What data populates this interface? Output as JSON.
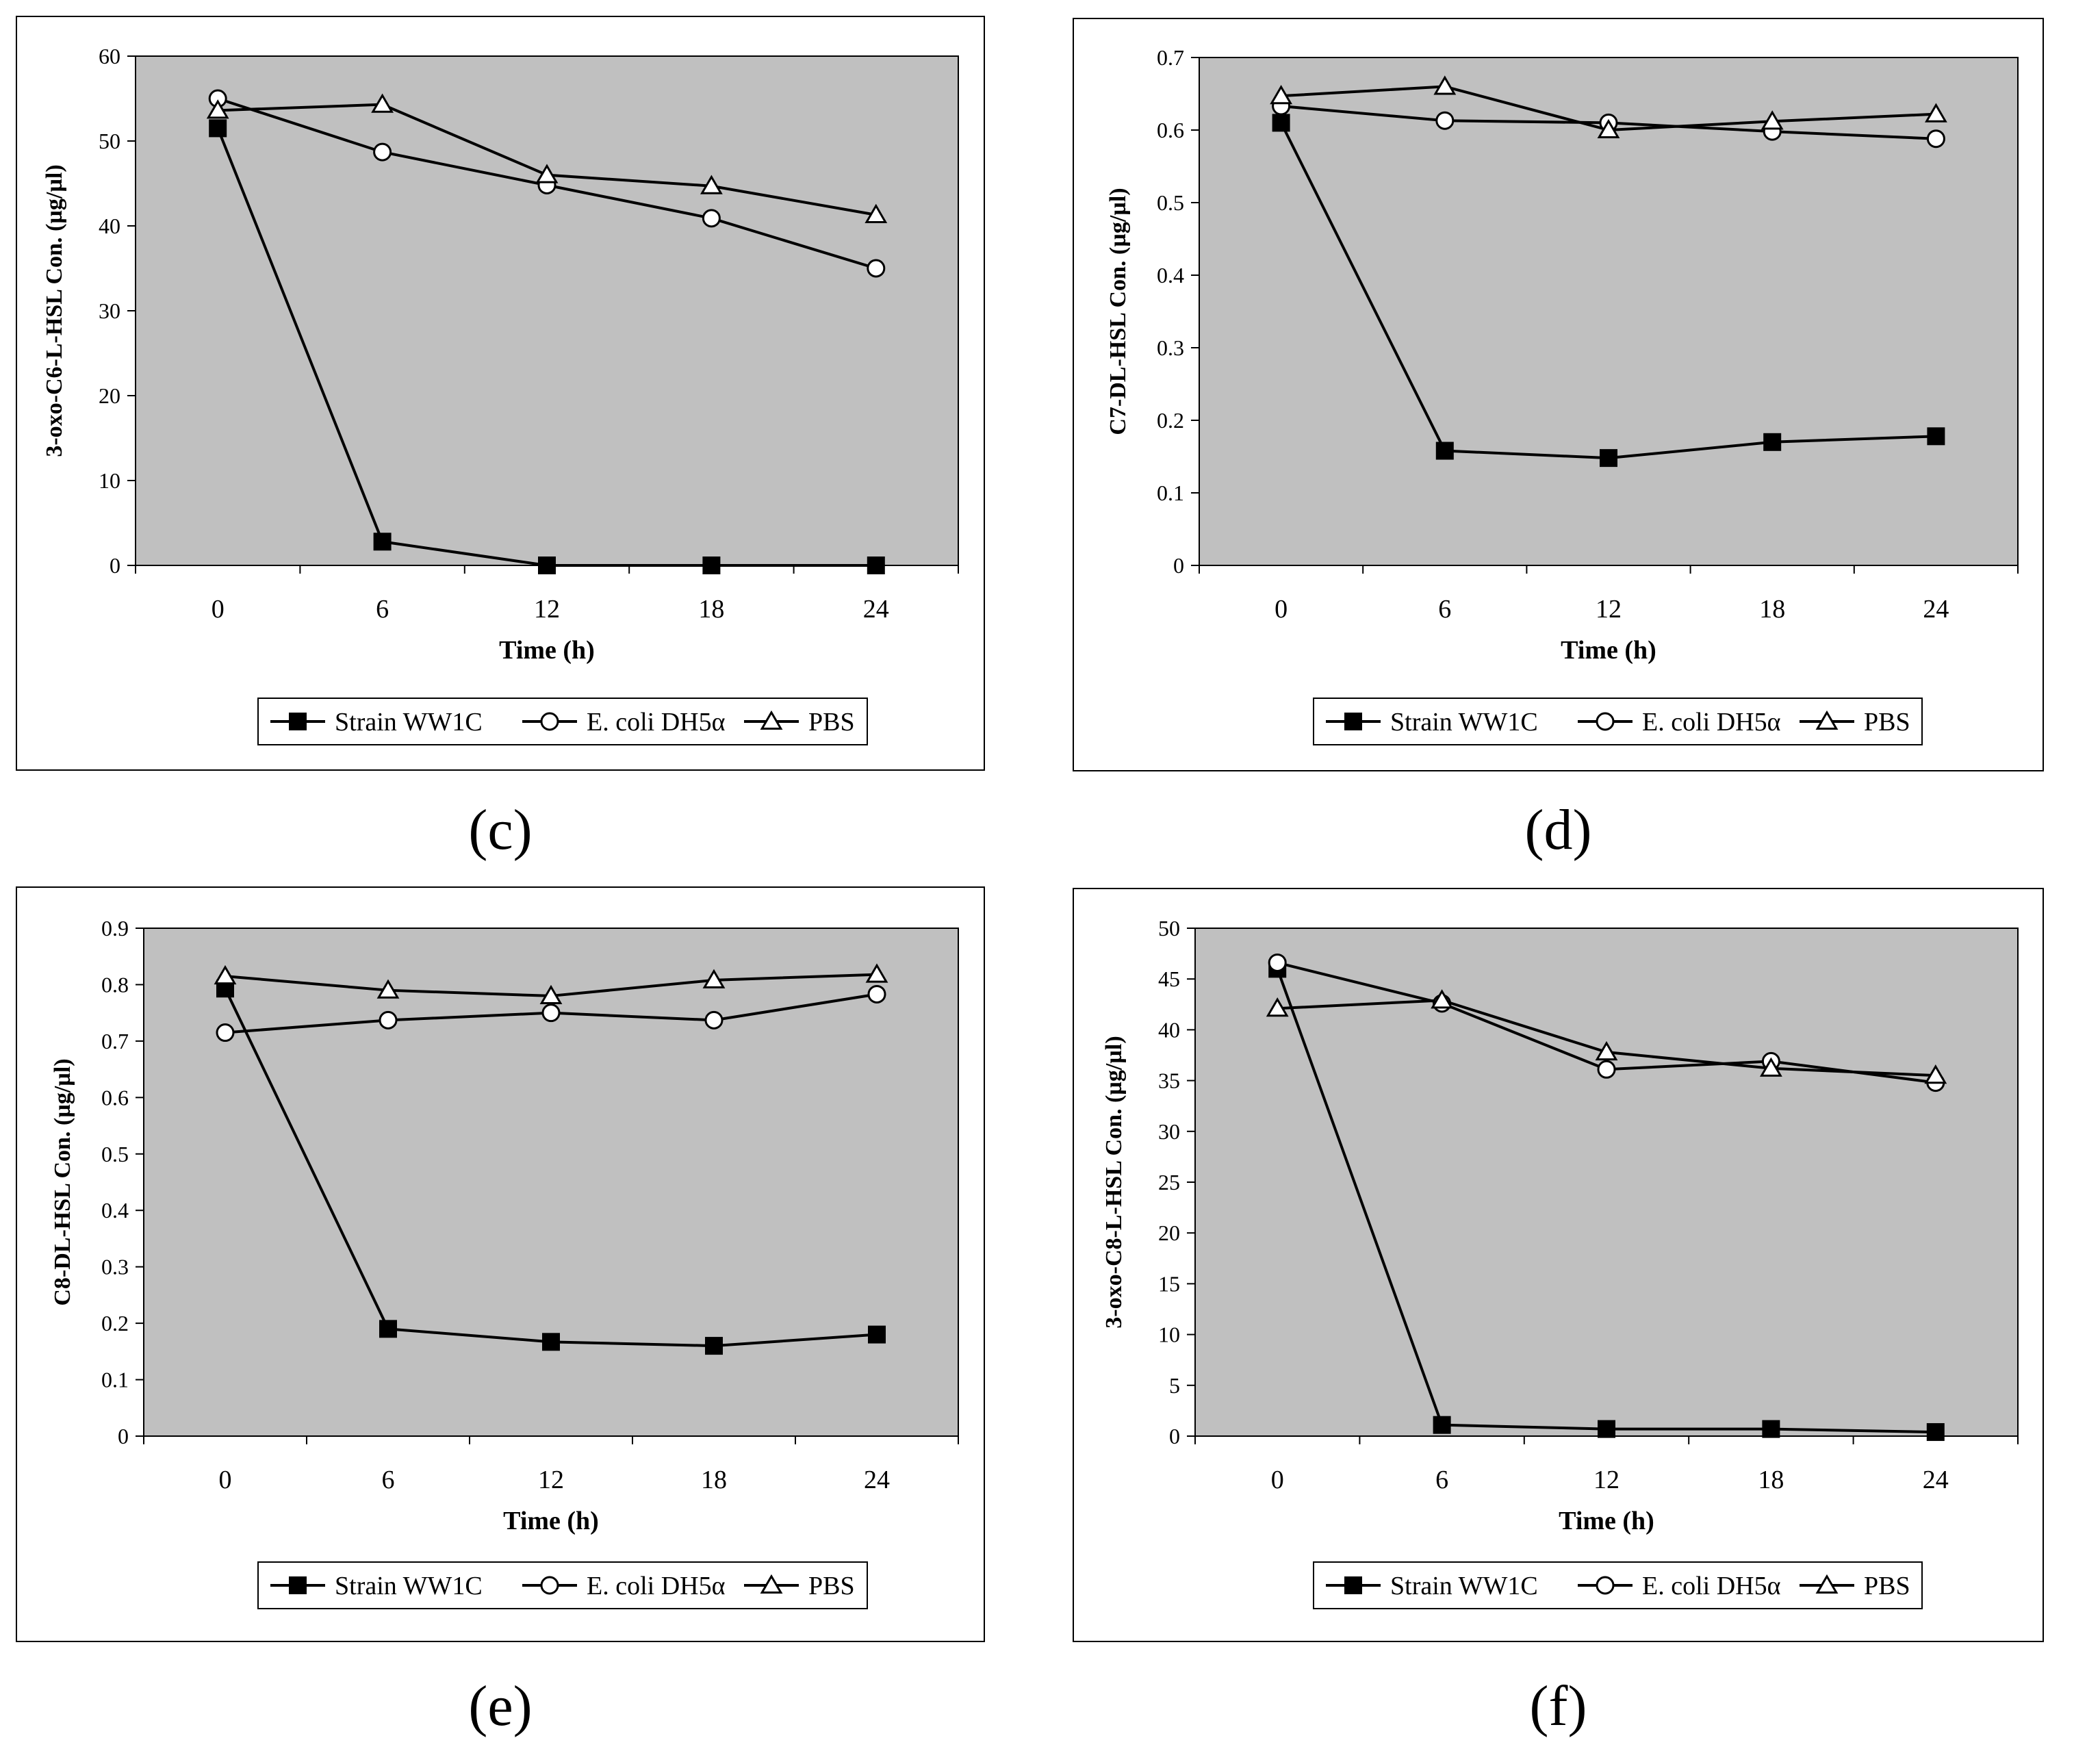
{
  "legend": [
    "Strain WW1C",
    "E. coli DH5α",
    "PBS"
  ],
  "panel_labels": [
    "(c)",
    "(d)",
    "(e)",
    "(f)"
  ],
  "chart_data": [
    {
      "type": "line",
      "panel": "(c)",
      "xlabel": "Time (h)",
      "ylabel": "3-oxo-C6-L-HSL Con. (µg/µl)",
      "categories": [
        "0",
        "6",
        "12",
        "18",
        "24"
      ],
      "ylim": [
        0,
        60
      ],
      "yticks": [
        "0",
        "10",
        "20",
        "30",
        "40",
        "50",
        "60"
      ],
      "series": [
        {
          "name": "Strain WW1C",
          "marker": "square",
          "values": [
            51.5,
            2.8,
            0,
            0,
            0
          ]
        },
        {
          "name": "E. coli DH5α",
          "marker": "circle",
          "values": [
            55,
            48.7,
            44.8,
            40.9,
            35
          ]
        },
        {
          "name": "PBS",
          "marker": "triangle",
          "values": [
            53.6,
            54.3,
            46,
            44.7,
            41.3
          ]
        }
      ]
    },
    {
      "type": "line",
      "panel": "(d)",
      "xlabel": "Time (h)",
      "ylabel": "C7-DL-HSL Con. (µg/µl)",
      "categories": [
        "0",
        "6",
        "12",
        "18",
        "24"
      ],
      "ylim": [
        0,
        0.7
      ],
      "yticks": [
        "0",
        "0.1",
        "0.2",
        "0.3",
        "0.4",
        "0.5",
        "0.6",
        "0.7"
      ],
      "series": [
        {
          "name": "Strain WW1C",
          "marker": "square",
          "values": [
            0.61,
            0.158,
            0.148,
            0.17,
            0.178
          ]
        },
        {
          "name": "E. coli DH5α",
          "marker": "circle",
          "values": [
            0.633,
            0.613,
            0.61,
            0.598,
            0.588
          ]
        },
        {
          "name": "PBS",
          "marker": "triangle",
          "values": [
            0.647,
            0.66,
            0.6,
            0.612,
            0.622
          ]
        }
      ]
    },
    {
      "type": "line",
      "panel": "(e)",
      "xlabel": "Time (h)",
      "ylabel": "C8-DL-HSL Con. (µg/µl)",
      "categories": [
        "0",
        "6",
        "12",
        "18",
        "24"
      ],
      "ylim": [
        0,
        0.9
      ],
      "yticks": [
        "0",
        "0.1",
        "0.2",
        "0.3",
        "0.4",
        "0.5",
        "0.6",
        "0.7",
        "0.8",
        "0.9"
      ],
      "series": [
        {
          "name": "Strain WW1C",
          "marker": "square",
          "values": [
            0.793,
            0.19,
            0.167,
            0.16,
            0.18
          ]
        },
        {
          "name": "E. coli DH5α",
          "marker": "circle",
          "values": [
            0.715,
            0.737,
            0.75,
            0.737,
            0.783
          ]
        },
        {
          "name": "PBS",
          "marker": "triangle",
          "values": [
            0.815,
            0.79,
            0.78,
            0.808,
            0.818
          ]
        }
      ]
    },
    {
      "type": "line",
      "panel": "(f)",
      "xlabel": "Time (h)",
      "ylabel": "3-oxo-C8-L-HSL Con. (µg/µl)",
      "categories": [
        "0",
        "6",
        "12",
        "18",
        "24"
      ],
      "ylim": [
        0,
        50
      ],
      "yticks": [
        "0",
        "5",
        "10",
        "15",
        "20",
        "25",
        "30",
        "35",
        "40",
        "45",
        "50"
      ],
      "series": [
        {
          "name": "Strain WW1C",
          "marker": "square",
          "values": [
            46,
            1.1,
            0.7,
            0.7,
            0.4
          ]
        },
        {
          "name": "E. coli DH5α",
          "marker": "circle",
          "values": [
            46.6,
            42.6,
            36.1,
            36.9,
            34.8
          ]
        },
        {
          "name": "PBS",
          "marker": "triangle",
          "values": [
            42.1,
            42.9,
            37.8,
            36.2,
            35.5
          ]
        }
      ]
    }
  ]
}
